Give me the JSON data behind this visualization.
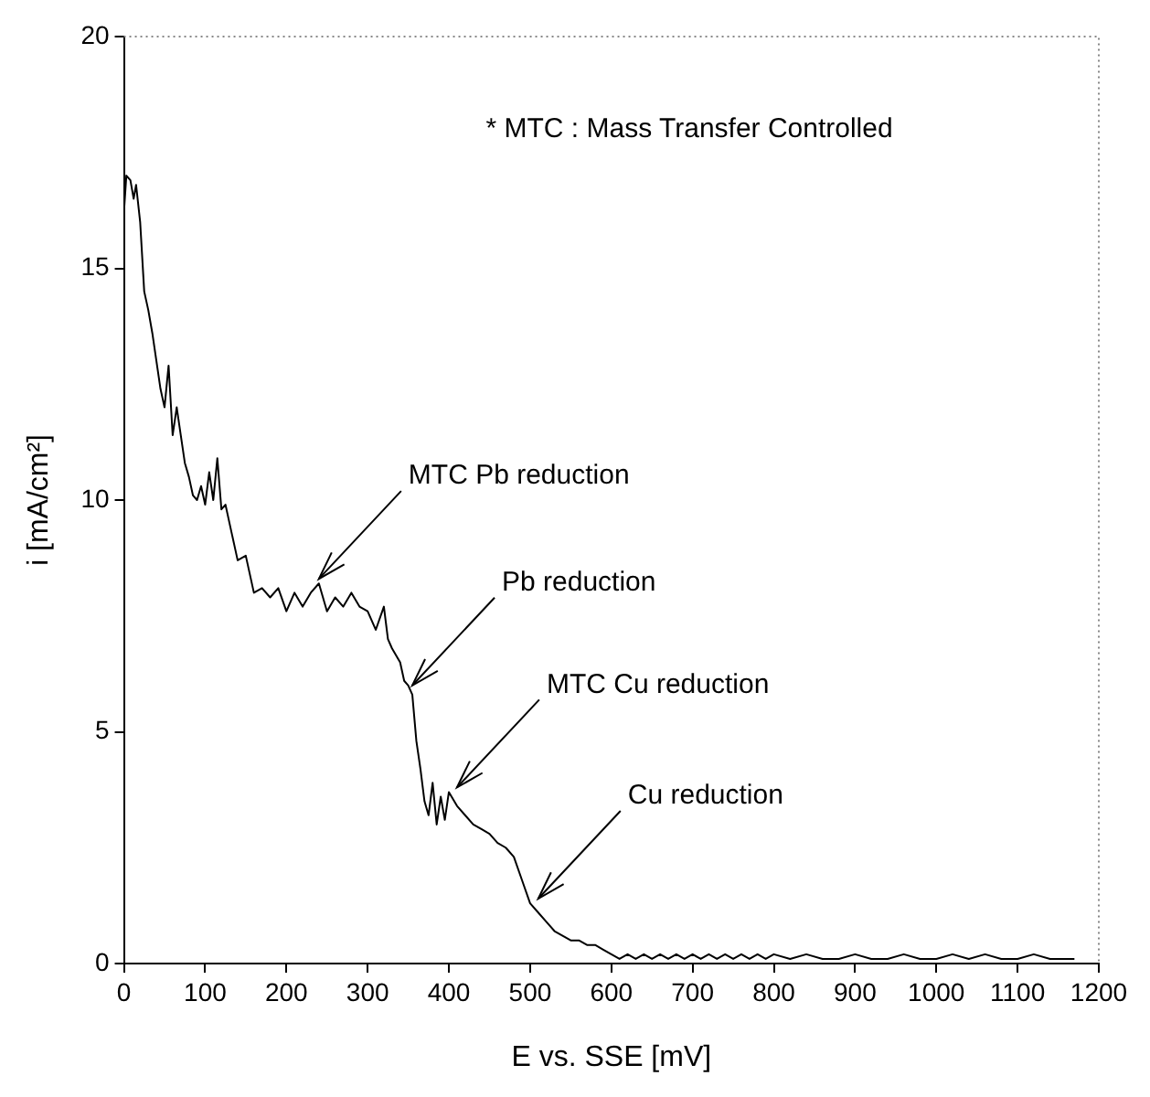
{
  "chart_data": {
    "type": "line",
    "xlabel": "E vs. SSE [mV]",
    "ylabel": "i [mA/cm²]",
    "x": [
      0,
      3,
      8,
      12,
      15,
      20,
      25,
      30,
      35,
      40,
      45,
      50,
      55,
      60,
      65,
      70,
      75,
      80,
      85,
      90,
      95,
      100,
      105,
      110,
      115,
      120,
      125,
      130,
      140,
      150,
      160,
      170,
      180,
      190,
      200,
      210,
      220,
      230,
      240,
      250,
      260,
      270,
      280,
      290,
      300,
      310,
      320,
      325,
      330,
      340,
      345,
      350,
      355,
      360,
      365,
      370,
      375,
      380,
      385,
      390,
      395,
      400,
      410,
      420,
      430,
      440,
      450,
      460,
      470,
      480,
      490,
      500,
      510,
      520,
      530,
      540,
      550,
      560,
      570,
      580,
      590,
      600,
      610,
      620,
      630,
      640,
      650,
      660,
      670,
      680,
      690,
      700,
      710,
      720,
      730,
      740,
      750,
      760,
      770,
      780,
      790,
      800,
      820,
      840,
      860,
      880,
      900,
      920,
      940,
      960,
      980,
      1000,
      1020,
      1040,
      1060,
      1080,
      1100,
      1120,
      1140,
      1160,
      1170
    ],
    "values": [
      16.2,
      17.0,
      16.9,
      16.5,
      16.8,
      16.0,
      14.5,
      14.1,
      13.6,
      13.0,
      12.4,
      12.0,
      12.9,
      11.4,
      12.0,
      11.4,
      10.8,
      10.5,
      10.1,
      10.0,
      10.3,
      9.9,
      10.6,
      10.0,
      10.9,
      9.8,
      9.9,
      9.5,
      8.7,
      8.8,
      8.0,
      8.1,
      7.9,
      8.1,
      7.6,
      8.0,
      7.7,
      8.0,
      8.2,
      7.6,
      7.9,
      7.7,
      8.0,
      7.7,
      7.6,
      7.2,
      7.7,
      7.0,
      6.8,
      6.5,
      6.1,
      6.0,
      5.8,
      4.8,
      4.2,
      3.5,
      3.2,
      3.9,
      3.0,
      3.6,
      3.1,
      3.7,
      3.4,
      3.2,
      3.0,
      2.9,
      2.8,
      2.6,
      2.5,
      2.3,
      1.8,
      1.3,
      1.1,
      0.9,
      0.7,
      0.6,
      0.5,
      0.5,
      0.4,
      0.4,
      0.3,
      0.2,
      0.1,
      0.2,
      0.1,
      0.2,
      0.1,
      0.2,
      0.1,
      0.2,
      0.1,
      0.2,
      0.1,
      0.2,
      0.1,
      0.2,
      0.1,
      0.2,
      0.1,
      0.2,
      0.1,
      0.2,
      0.1,
      0.2,
      0.1,
      0.1,
      0.2,
      0.1,
      0.1,
      0.2,
      0.1,
      0.1,
      0.2,
      0.1,
      0.2,
      0.1,
      0.1,
      0.2,
      0.1,
      0.1,
      0.1
    ],
    "color": "#000000",
    "marker": "none",
    "line_style": "solid",
    "legend": false,
    "grid": false,
    "xlim": [
      0,
      1200
    ],
    "xticks": [
      0,
      100,
      200,
      300,
      400,
      500,
      600,
      700,
      800,
      900,
      1000,
      1100,
      1200
    ],
    "ylim": [
      0,
      20
    ],
    "yticks": [
      0,
      5,
      10,
      15,
      20
    ],
    "annotations": [
      "* MTC : Mass Transfer Controlled",
      {
        "text": "MTC Pb reduction",
        "x": 240,
        "y": 8.3
      },
      {
        "text": "Pb reduction",
        "x": 355,
        "y": 6.0
      },
      {
        "text": "MTC Cu reduction",
        "x": 410,
        "y": 3.8
      },
      {
        "text": "Cu reduction",
        "x": 510,
        "y": 1.4
      }
    ]
  }
}
